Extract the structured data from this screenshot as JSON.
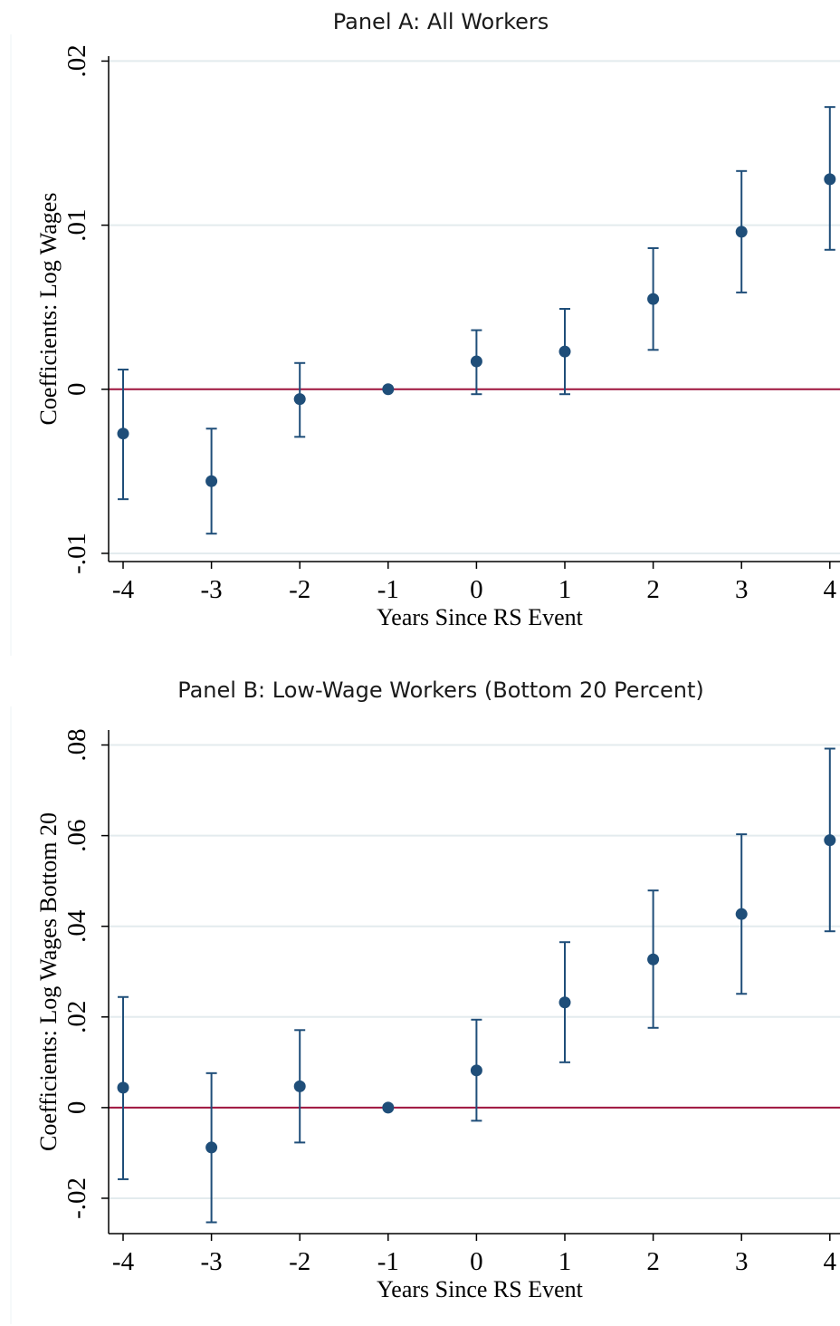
{
  "chart_data": [
    {
      "type": "scatter",
      "subtype": "coefficient plot with error bars",
      "title": "Panel A: All Workers",
      "xlabel": "Years Since RS Event",
      "ylabel": "Coefficients: Log Wages",
      "x_ticks": [
        "-4",
        "-3",
        "-2",
        "-1",
        "0",
        "1",
        "2",
        "3",
        "4"
      ],
      "y_ticks": [
        {
          "value": 0.02,
          "label": ".02"
        },
        {
          "value": 0.01,
          "label": ".01"
        },
        {
          "value": 0,
          "label": "0"
        },
        {
          "value": -0.01,
          "label": "-.01"
        }
      ],
      "ylim": [
        -0.0105,
        0.0203
      ],
      "reference_line": 0,
      "colors": {
        "point": "#1f4e79",
        "errorbar": "#1f4e79",
        "refline": "#a0153e",
        "grid": "#e3ebee"
      },
      "points": [
        {
          "x": -4,
          "y": -0.0027,
          "lo": -0.0067,
          "hi": 0.0012
        },
        {
          "x": -3,
          "y": -0.0056,
          "lo": -0.0088,
          "hi": -0.0024
        },
        {
          "x": -2,
          "y": -0.0006,
          "lo": -0.0029,
          "hi": 0.0016
        },
        {
          "x": -1,
          "y": 0.0,
          "lo": 0.0,
          "hi": 0.0
        },
        {
          "x": 0,
          "y": 0.0017,
          "lo": -0.0003,
          "hi": 0.0036
        },
        {
          "x": 1,
          "y": 0.0023,
          "lo": -0.0003,
          "hi": 0.0049
        },
        {
          "x": 2,
          "y": 0.0055,
          "lo": 0.0024,
          "hi": 0.0086
        },
        {
          "x": 3,
          "y": 0.0096,
          "lo": 0.0059,
          "hi": 0.0133
        },
        {
          "x": 4,
          "y": 0.0128,
          "lo": 0.0085,
          "hi": 0.0172
        }
      ]
    },
    {
      "type": "scatter",
      "subtype": "coefficient plot with error bars",
      "title": "Panel B: Low-Wage Workers (Bottom 20 Percent)",
      "xlabel": "Years Since RS Event",
      "ylabel": "Coefficients: Log Wages Bottom 20",
      "x_ticks": [
        "-4",
        "-3",
        "-2",
        "-1",
        "0",
        "1",
        "2",
        "3",
        "4"
      ],
      "y_ticks": [
        {
          "value": 0.08,
          "label": ".08"
        },
        {
          "value": 0.06,
          "label": ".06"
        },
        {
          "value": 0.04,
          "label": ".04"
        },
        {
          "value": 0.02,
          "label": ".02"
        },
        {
          "value": 0,
          "label": "0"
        },
        {
          "value": -0.02,
          "label": "-.02"
        }
      ],
      "ylim": [
        -0.0278,
        0.0833
      ],
      "reference_line": 0,
      "colors": {
        "point": "#1f4e79",
        "errorbar": "#1f4e79",
        "refline": "#a0153e",
        "grid": "#e3ebee"
      },
      "points": [
        {
          "x": -4,
          "y": 0.0044,
          "lo": -0.0158,
          "hi": 0.0244
        },
        {
          "x": -3,
          "y": -0.0088,
          "lo": -0.0253,
          "hi": 0.0076
        },
        {
          "x": -2,
          "y": 0.0047,
          "lo": -0.0077,
          "hi": 0.0171
        },
        {
          "x": -1,
          "y": 0.0,
          "lo": 0.0,
          "hi": 0.0
        },
        {
          "x": 0,
          "y": 0.0082,
          "lo": -0.0029,
          "hi": 0.0194
        },
        {
          "x": 1,
          "y": 0.0232,
          "lo": 0.01,
          "hi": 0.0365
        },
        {
          "x": 2,
          "y": 0.0327,
          "lo": 0.0176,
          "hi": 0.0479
        },
        {
          "x": 3,
          "y": 0.0427,
          "lo": 0.0251,
          "hi": 0.0603
        },
        {
          "x": 4,
          "y": 0.059,
          "lo": 0.0389,
          "hi": 0.0792
        }
      ]
    }
  ]
}
